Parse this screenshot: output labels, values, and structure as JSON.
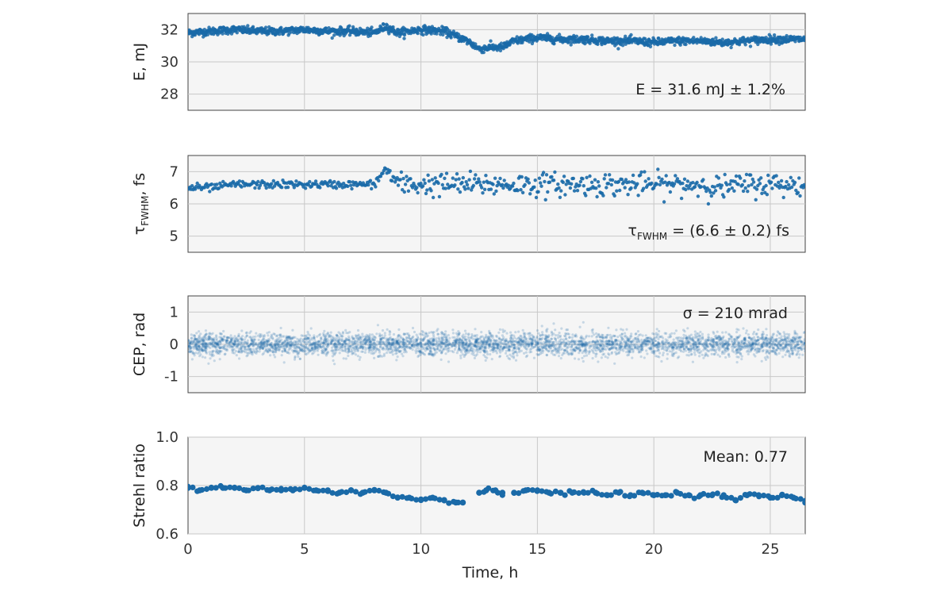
{
  "chart_data": [
    {
      "type": "scatter",
      "ylabel": "E, mJ",
      "annotation": "E = 31.6 mJ ± 1.2%",
      "ylim": [
        27,
        33
      ],
      "yticks": [
        "28",
        "30",
        "32"
      ],
      "xlim": [
        0,
        26.5
      ],
      "grid": true,
      "series": [
        {
          "marker_color": "#1a6aa8",
          "x": [
            0,
            1,
            2,
            3,
            4,
            5,
            6,
            7,
            8,
            8.5,
            9,
            10,
            11,
            11.5,
            12,
            12.5,
            13,
            13.5,
            14,
            15,
            16,
            17,
            18,
            19,
            20,
            21,
            22,
            23,
            24,
            25,
            26,
            26.5
          ],
          "y": [
            31.8,
            31.9,
            32.0,
            31.9,
            31.9,
            32.0,
            31.9,
            31.9,
            31.8,
            32.2,
            31.8,
            32.0,
            31.9,
            31.6,
            31.3,
            30.8,
            30.9,
            30.9,
            31.3,
            31.5,
            31.4,
            31.4,
            31.3,
            31.3,
            31.2,
            31.3,
            31.3,
            31.2,
            31.3,
            31.4,
            31.4,
            31.4
          ]
        }
      ]
    },
    {
      "type": "scatter",
      "ylabel_main": "τ",
      "ylabel_sub": "FWHM",
      "ylabel_suffix": ", fs",
      "annotation_main": "τ",
      "annotation_sub": "FWHM",
      "annotation_suffix": " = (6.6 ± 0.2) fs",
      "ylim": [
        4.5,
        7.5
      ],
      "yticks": [
        "5",
        "6",
        "7"
      ],
      "xlim": [
        0,
        26.5
      ],
      "grid": true,
      "series": [
        {
          "marker_color": "#1a6aa8",
          "x": [
            0,
            1,
            2,
            3,
            4,
            5,
            6,
            7,
            8,
            8.5,
            9,
            10,
            11,
            12,
            13,
            14,
            15,
            16,
            17,
            18,
            19,
            20,
            21,
            22,
            23,
            24,
            25,
            26,
            26.5
          ],
          "y": [
            6.5,
            6.5,
            6.6,
            6.6,
            6.6,
            6.6,
            6.6,
            6.6,
            6.6,
            7.1,
            6.6,
            6.6,
            6.6,
            6.6,
            6.6,
            6.6,
            6.6,
            6.6,
            6.6,
            6.6,
            6.6,
            6.6,
            6.6,
            6.6,
            6.5,
            6.6,
            6.6,
            6.6,
            6.5
          ]
        }
      ]
    },
    {
      "type": "scatter",
      "ylabel": "CEP, rad",
      "annotation": "σ = 210 mrad",
      "ylim": [
        -1.5,
        1.5
      ],
      "yticks": [
        "-1",
        "0",
        "1"
      ],
      "xlim": [
        0,
        26.5
      ],
      "grid": true,
      "series": [
        {
          "marker_color": "#1a6aa8",
          "x": [
            0,
            5,
            10,
            15,
            20,
            25,
            26.5
          ],
          "y": [
            0.0,
            0.0,
            0.0,
            0.0,
            0.0,
            0.0,
            0.0
          ]
        }
      ]
    },
    {
      "type": "scatter",
      "ylabel": "Strehl ratio",
      "annotation": "Mean: 0.77",
      "ylim": [
        0.6,
        1.0
      ],
      "yticks": [
        "0.6",
        "0.8",
        "1.0"
      ],
      "xlim": [
        0,
        26.5
      ],
      "xticks": [
        "0",
        "5",
        "10",
        "15",
        "20",
        "25"
      ],
      "xlabel": "Time, h",
      "grid": true,
      "series": [
        {
          "marker_color": "#1a6aa8",
          "x": [
            0,
            0.5,
            1,
            1.5,
            2,
            2.5,
            3,
            3.5,
            4,
            4.5,
            5,
            5.5,
            6,
            6.5,
            7,
            7.5,
            8,
            8.5,
            9,
            9.5,
            10,
            10.5,
            11,
            11.5,
            11.8,
            12.5,
            12.8,
            13.2,
            13.5,
            14,
            14.5,
            15,
            15.5,
            16,
            16.5,
            17,
            17.5,
            18,
            18.5,
            19,
            19.5,
            20,
            20.5,
            21,
            21.5,
            22,
            22.5,
            23,
            23.5,
            24,
            24.5,
            25,
            25.5,
            26,
            26.5
          ],
          "y": [
            0.79,
            0.78,
            0.79,
            0.79,
            0.79,
            0.78,
            0.79,
            0.78,
            0.78,
            0.78,
            0.79,
            0.78,
            0.78,
            0.77,
            0.78,
            0.77,
            0.78,
            0.77,
            0.75,
            0.75,
            0.74,
            0.75,
            0.74,
            0.73,
            0.73,
            0.77,
            0.78,
            0.78,
            0.77,
            0.77,
            0.78,
            0.78,
            0.77,
            0.77,
            0.77,
            0.77,
            0.77,
            0.76,
            0.77,
            0.76,
            0.77,
            0.76,
            0.76,
            0.77,
            0.76,
            0.76,
            0.76,
            0.76,
            0.74,
            0.76,
            0.76,
            0.75,
            0.76,
            0.75,
            0.73
          ]
        }
      ]
    }
  ]
}
